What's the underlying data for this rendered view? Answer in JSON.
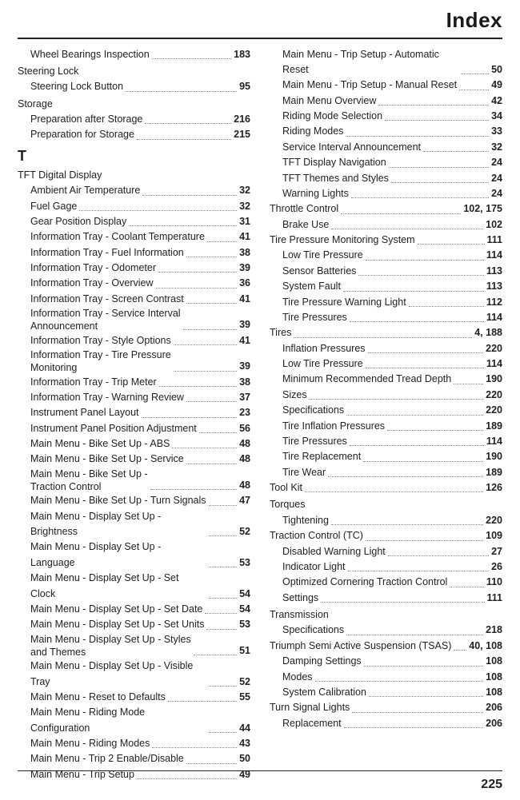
{
  "header": {
    "title": "Index"
  },
  "footer": {
    "page_number": "225"
  },
  "columns": {
    "left": {
      "groups": [
        {
          "heading": null,
          "section_letter": null,
          "entries": [
            {
              "label": "Wheel Bearings Inspection",
              "page": "183",
              "indent": true
            }
          ]
        },
        {
          "heading": "Steering Lock",
          "entries": [
            {
              "label": "Steering Lock Button",
              "page": "95",
              "indent": true
            }
          ]
        },
        {
          "heading": "Storage",
          "entries": [
            {
              "label": "Preparation after Storage",
              "page": "216",
              "indent": true
            },
            {
              "label": "Preparation for Storage",
              "page": "215",
              "indent": true
            }
          ]
        },
        {
          "section_letter": "T",
          "heading": "TFT Digital Display",
          "entries": [
            {
              "label": "Ambient Air Temperature",
              "page": "32",
              "indent": true
            },
            {
              "label": "Fuel Gage",
              "page": "32",
              "indent": true
            },
            {
              "label": "Gear Position Display",
              "page": "31",
              "indent": true
            },
            {
              "label": "Information Tray - Coolant Temperature",
              "page": "41",
              "indent": true
            },
            {
              "label": "Information Tray - Fuel Information",
              "page": "38",
              "indent": true
            },
            {
              "label": "Information Tray - Odometer",
              "page": "39",
              "indent": true
            },
            {
              "label": "Information Tray - Overview",
              "page": "36",
              "indent": true
            },
            {
              "label": "Information Tray - Screen Contrast",
              "page": "41",
              "indent": true
            },
            {
              "label": "Information Tray - Service Interval\nAnnouncement",
              "page": "39",
              "indent": true,
              "multi": true
            },
            {
              "label": "Information Tray - Style Options",
              "page": "41",
              "indent": true
            },
            {
              "label": "Information Tray - Tire Pressure\nMonitoring",
              "page": "39",
              "indent": true,
              "multi": true
            },
            {
              "label": "Information Tray - Trip Meter",
              "page": "38",
              "indent": true
            },
            {
              "label": "Information Tray - Warning Review",
              "page": "37",
              "indent": true
            },
            {
              "label": "Instrument Panel Layout",
              "page": "23",
              "indent": true
            },
            {
              "label": "Instrument Panel Position Adjustment",
              "page": "56",
              "indent": true
            },
            {
              "label": "Main Menu - Bike Set Up - ABS",
              "page": "48",
              "indent": true
            },
            {
              "label": "Main Menu - Bike Set Up - Service",
              "page": "48",
              "indent": true
            },
            {
              "label": "Main Menu - Bike Set Up -\nTraction Control",
              "page": "48",
              "indent": true,
              "multi": true
            },
            {
              "label": "Main Menu - Bike Set Up - Turn Signals",
              "page": "47",
              "indent": true
            },
            {
              "label": "Main Menu - Display Set Up - Brightness",
              "page": "52",
              "indent": true
            },
            {
              "label": "Main Menu - Display Set Up - Language",
              "page": "53",
              "indent": true
            },
            {
              "label": "Main Menu - Display Set Up - Set Clock",
              "page": "54",
              "indent": true
            },
            {
              "label": "Main Menu - Display Set Up - Set Date",
              "page": "54",
              "indent": true
            },
            {
              "label": "Main Menu - Display Set Up - Set Units",
              "page": "53",
              "indent": true
            },
            {
              "label": "Main Menu - Display Set Up - Styles\nand Themes",
              "page": "51",
              "indent": true,
              "multi": true
            },
            {
              "label": "Main Menu - Display Set Up - Visible Tray",
              "page": "52",
              "indent": true
            },
            {
              "label": "Main Menu - Reset to Defaults",
              "page": "55",
              "indent": true
            },
            {
              "label": "Main Menu - Riding Mode Configuration",
              "page": "44",
              "indent": true
            },
            {
              "label": "Main Menu - Riding Modes",
              "page": "43",
              "indent": true
            },
            {
              "label": "Main Menu - Trip 2 Enable/Disable",
              "page": "50",
              "indent": true
            },
            {
              "label": "Main Menu - Trip Setup",
              "page": "49",
              "indent": true
            }
          ]
        }
      ]
    },
    "right": {
      "groups": [
        {
          "heading": null,
          "entries": [
            {
              "label": "Main Menu - Trip Setup - Automatic Reset",
              "page": "50",
              "indent": true
            },
            {
              "label": "Main Menu - Trip Setup - Manual Reset",
              "page": "49",
              "indent": true
            },
            {
              "label": "Main Menu Overview",
              "page": "42",
              "indent": true
            },
            {
              "label": "Riding Mode Selection",
              "page": "34",
              "indent": true
            },
            {
              "label": "Riding Modes",
              "page": "33",
              "indent": true
            },
            {
              "label": "Service Interval Announcement",
              "page": "32",
              "indent": true
            },
            {
              "label": "TFT Display Navigation",
              "page": "24",
              "indent": true
            },
            {
              "label": "TFT Themes and Styles",
              "page": "24",
              "indent": true
            },
            {
              "label": "Warning Lights",
              "page": "24",
              "indent": true
            }
          ]
        },
        {
          "heading_inline": {
            "label": "Throttle Control",
            "page": "102, 175"
          },
          "entries": [
            {
              "label": "Brake Use",
              "page": "102",
              "indent": true
            }
          ]
        },
        {
          "heading_inline": {
            "label": "Tire Pressure Monitoring System",
            "page": "111"
          },
          "entries": [
            {
              "label": "Low Tire Pressure",
              "page": "114",
              "indent": true
            },
            {
              "label": "Sensor Batteries",
              "page": "113",
              "indent": true
            },
            {
              "label": "System Fault",
              "page": "113",
              "indent": true
            },
            {
              "label": "Tire Pressure Warning Light",
              "page": "112",
              "indent": true
            },
            {
              "label": "Tire Pressures",
              "page": "114",
              "indent": true
            }
          ]
        },
        {
          "heading_inline": {
            "label": "Tires",
            "page": "4, 188"
          },
          "entries": [
            {
              "label": "Inflation Pressures",
              "page": "220",
              "indent": true
            },
            {
              "label": "Low Tire Pressure",
              "page": "114",
              "indent": true
            },
            {
              "label": "Minimum Recommended Tread Depth",
              "page": "190",
              "indent": true
            },
            {
              "label": "Sizes",
              "page": "220",
              "indent": true
            },
            {
              "label": "Specifications",
              "page": "220",
              "indent": true
            },
            {
              "label": "Tire Inflation Pressures",
              "page": "189",
              "indent": true
            },
            {
              "label": "Tire Pressures",
              "page": "114",
              "indent": true
            },
            {
              "label": "Tire Replacement",
              "page": "190",
              "indent": true
            },
            {
              "label": "Tire Wear",
              "page": "189",
              "indent": true
            }
          ]
        },
        {
          "heading_inline": {
            "label": "Tool Kit",
            "page": "126"
          },
          "entries": []
        },
        {
          "heading": "Torques",
          "entries": [
            {
              "label": "Tightening",
              "page": "220",
              "indent": true
            }
          ]
        },
        {
          "heading_inline": {
            "label": "Traction Control (TC)",
            "page": "109"
          },
          "entries": [
            {
              "label": "Disabled Warning Light",
              "page": "27",
              "indent": true
            },
            {
              "label": "Indicator Light",
              "page": "26",
              "indent": true
            },
            {
              "label": "Optimized Cornering Traction Control",
              "page": "110",
              "indent": true
            },
            {
              "label": "Settings",
              "page": "111",
              "indent": true
            }
          ]
        },
        {
          "heading": "Transmission",
          "entries": [
            {
              "label": "Specifications",
              "page": "218",
              "indent": true
            }
          ]
        },
        {
          "heading_inline": {
            "label": "Triumph Semi Active Suspension (TSAS)",
            "page": "40, 108"
          },
          "entries": [
            {
              "label": "Damping Settings",
              "page": "108",
              "indent": true
            },
            {
              "label": "Modes",
              "page": "108",
              "indent": true
            },
            {
              "label": "System Calibration",
              "page": "108",
              "indent": true
            }
          ]
        },
        {
          "heading_inline": {
            "label": "Turn Signal Lights",
            "page": "206"
          },
          "entries": [
            {
              "label": "Replacement",
              "page": "206",
              "indent": true
            }
          ]
        }
      ]
    }
  }
}
